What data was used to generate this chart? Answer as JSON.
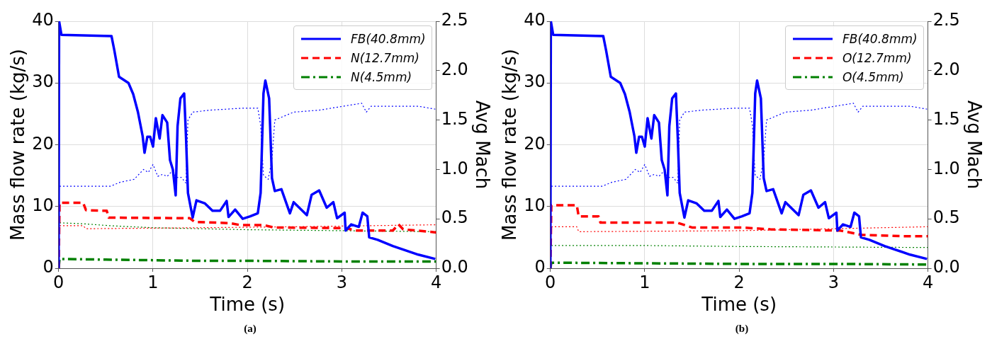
{
  "chart_data": [
    {
      "type": "line",
      "xlabel": "Time (s)",
      "ylabel": "Mass flow rate (kg/s)",
      "y2label": "Avg Mach",
      "annotations": [
        "(a)"
      ],
      "xlim": [
        0,
        4
      ],
      "xticks": [
        0,
        1,
        2,
        3,
        4
      ],
      "ylim": [
        0,
        40
      ],
      "yticks": [
        0,
        10,
        20,
        30,
        40
      ],
      "y2lim": [
        0,
        2.5
      ],
      "y2ticks": [
        {
          "value": 0,
          "label": "0.0"
        },
        {
          "value": 0.5,
          "label": "0.5"
        },
        {
          "value": 1,
          "label": "1.0"
        },
        {
          "value": 1.5,
          "label": "1.5"
        },
        {
          "value": 2,
          "label": "2.0"
        },
        {
          "value": 2.5,
          "label": "2.5"
        }
      ],
      "grid": true,
      "legend": "top right",
      "series": [
        {
          "name": "FB(40.8mm)",
          "color": "#0000ff",
          "line_style": "solid",
          "x": [
            0,
            0.005,
            0.03,
            0.56,
            0.59,
            0.64,
            0.74,
            0.79,
            0.84,
            0.89,
            0.91,
            0.94,
            0.97,
            1.0,
            1.03,
            1.07,
            1.1,
            1.15,
            1.18,
            1.21,
            1.24,
            1.26,
            1.29,
            1.33,
            1.35,
            1.37,
            1.42,
            1.46,
            1.55,
            1.63,
            1.71,
            1.78,
            1.8,
            1.87,
            1.95,
            2.03,
            2.11,
            2.14,
            2.17,
            2.19,
            2.23,
            2.26,
            2.29,
            2.36,
            2.45,
            2.49,
            2.63,
            2.68,
            2.76,
            2.84,
            2.91,
            2.95,
            3.03,
            3.04,
            3.1,
            3.18,
            3.22,
            3.27,
            3.29,
            3.38,
            3.54,
            3.81,
            3.99
          ],
          "values": [
            0,
            40,
            37.8,
            37.6,
            35.3,
            31,
            30,
            28.2,
            25.3,
            21.4,
            18.7,
            21.3,
            21.3,
            19.7,
            24.3,
            21,
            24.8,
            23.6,
            17.5,
            16,
            11.8,
            23,
            27.5,
            28.3,
            21,
            12.2,
            8.2,
            11,
            10.5,
            9.3,
            9.3,
            10.9,
            8.3,
            9.5,
            8,
            8.4,
            8.9,
            12.2,
            28.3,
            30.4,
            27.5,
            14.6,
            12.5,
            12.8,
            8.9,
            10.7,
            8.6,
            11.9,
            12.6,
            9.8,
            10.7,
            8.1,
            9,
            6.1,
            7.1,
            6.7,
            9,
            8.4,
            5,
            4.6,
            3.6,
            2.2,
            1.5
          ]
        },
        {
          "name": "N(12.7mm)",
          "color": "#ff0000",
          "line_style": "dashed",
          "x": [
            0,
            0.01,
            0.26,
            0.29,
            0.51,
            0.53,
            1.39,
            1.44,
            1.82,
            1.92,
            2.17,
            2.28,
            3.03,
            3.16,
            3.54,
            3.6,
            3.65,
            4.0
          ],
          "values": [
            0,
            10.6,
            10.6,
            9.4,
            9.3,
            8.2,
            8.1,
            7.5,
            7.3,
            7,
            7,
            6.6,
            6.5,
            6.1,
            6.1,
            7.1,
            6.3,
            5.8
          ]
        },
        {
          "name": "N(4.5mm)",
          "color": "#008000",
          "line_style": "dashdot",
          "x": [
            0,
            0.01,
            0.5,
            1,
            1.5,
            2,
            3,
            4
          ],
          "values": [
            0,
            1.5,
            1.4,
            1.3,
            1.2,
            1.2,
            1.1,
            1.1
          ]
        },
        {
          "color": "#0000ff",
          "line_style": "dotted",
          "axis": "y2",
          "x": [
            0.01,
            0.55,
            0.65,
            0.8,
            0.9,
            0.95,
            1.0,
            1.05,
            1.1,
            1.15,
            1.2,
            1.25,
            1.3,
            1.35,
            1.37,
            1.42,
            1.6,
            1.95,
            2.11,
            2.14,
            2.17,
            2.22,
            2.26,
            2.29,
            2.49,
            2.76,
            3.21,
            3.26,
            3.31,
            3.81,
            3.99
          ],
          "values": [
            0.83,
            0.83,
            0.87,
            0.9,
            1.0,
            0.97,
            1.05,
            0.93,
            0.95,
            0.93,
            0.98,
            0.92,
            0.92,
            0.86,
            1.5,
            1.58,
            1.6,
            1.62,
            1.62,
            1.45,
            0.94,
            0.9,
            1.1,
            1.5,
            1.58,
            1.6,
            1.67,
            1.58,
            1.64,
            1.64,
            1.61
          ]
        },
        {
          "color": "#ff0000",
          "line_style": "dotted",
          "axis": "y2",
          "x": [
            0.01,
            0.26,
            0.29,
            1.5,
            2.5,
            4.0
          ],
          "values": [
            0.43,
            0.43,
            0.4,
            0.41,
            0.42,
            0.44
          ]
        },
        {
          "color": "#008000",
          "line_style": "dotted",
          "axis": "y2",
          "x": [
            0.01,
            0.26,
            0.55,
            1.0,
            1.5,
            2.0,
            4.0
          ],
          "values": [
            0.46,
            0.45,
            0.43,
            0.41,
            0.4,
            0.39,
            0.37
          ]
        }
      ]
    },
    {
      "type": "line",
      "xlabel": "Time (s)",
      "ylabel": "Mass flow rate (kg/s)",
      "y2label": "Avg Mach",
      "annotations": [
        "(b)"
      ],
      "xlim": [
        0,
        4
      ],
      "xticks": [
        0,
        1,
        2,
        3,
        4
      ],
      "ylim": [
        0,
        40
      ],
      "yticks": [
        0,
        10,
        20,
        30,
        40
      ],
      "y2lim": [
        0,
        2.5
      ],
      "y2ticks": [
        {
          "value": 0,
          "label": "0.0"
        },
        {
          "value": 0.5,
          "label": "0.5"
        },
        {
          "value": 1,
          "label": "1.0"
        },
        {
          "value": 1.5,
          "label": "1.5"
        },
        {
          "value": 2,
          "label": "2.0"
        },
        {
          "value": 2.5,
          "label": "2.5"
        }
      ],
      "grid": true,
      "legend": "top right",
      "series": [
        {
          "name": "FB(40.8mm)",
          "color": "#0000ff",
          "line_style": "solid",
          "x": [
            0,
            0.005,
            0.03,
            0.56,
            0.59,
            0.64,
            0.74,
            0.79,
            0.84,
            0.89,
            0.91,
            0.94,
            0.97,
            1.0,
            1.03,
            1.07,
            1.1,
            1.15,
            1.18,
            1.21,
            1.24,
            1.26,
            1.29,
            1.33,
            1.35,
            1.37,
            1.42,
            1.46,
            1.55,
            1.63,
            1.71,
            1.78,
            1.8,
            1.87,
            1.95,
            2.03,
            2.11,
            2.14,
            2.17,
            2.19,
            2.23,
            2.26,
            2.29,
            2.36,
            2.45,
            2.49,
            2.63,
            2.68,
            2.76,
            2.84,
            2.91,
            2.95,
            3.03,
            3.04,
            3.1,
            3.18,
            3.22,
            3.27,
            3.29,
            3.38,
            3.54,
            3.81,
            3.99
          ],
          "values": [
            0,
            40,
            37.8,
            37.6,
            35.3,
            31,
            30,
            28.2,
            25.3,
            21.4,
            18.7,
            21.3,
            21.3,
            19.7,
            24.3,
            21,
            24.8,
            23.6,
            17.5,
            16,
            11.8,
            23,
            27.5,
            28.3,
            21,
            12.2,
            8.2,
            11,
            10.5,
            9.3,
            9.3,
            10.9,
            8.3,
            9.5,
            8,
            8.4,
            8.9,
            12.2,
            28.3,
            30.4,
            27.5,
            14.6,
            12.5,
            12.8,
            8.9,
            10.7,
            8.6,
            11.9,
            12.6,
            9.8,
            10.7,
            8.1,
            9,
            6.1,
            7.1,
            6.7,
            9,
            8.4,
            5,
            4.6,
            3.6,
            2.2,
            1.5
          ]
        },
        {
          "name": "O(12.7mm)",
          "color": "#ff0000",
          "line_style": "dashed",
          "x": [
            0,
            0.01,
            0.28,
            0.3,
            0.51,
            0.53,
            1.34,
            1.5,
            2.03,
            2.33,
            3.07,
            3.3,
            3.73,
            4.0
          ],
          "values": [
            0,
            10.2,
            10.2,
            8.4,
            8.4,
            7.4,
            7.4,
            6.6,
            6.6,
            6.3,
            6.1,
            5.4,
            5.2,
            5.2
          ]
        },
        {
          "name": "O(4.5mm)",
          "color": "#008000",
          "line_style": "dashdot",
          "x": [
            0,
            0.01,
            1,
            2,
            3,
            4
          ],
          "values": [
            0,
            0.9,
            0.8,
            0.7,
            0.7,
            0.6
          ]
        },
        {
          "color": "#0000ff",
          "line_style": "dotted",
          "axis": "y2",
          "x": [
            0.01,
            0.55,
            0.65,
            0.8,
            0.9,
            0.95,
            1.0,
            1.05,
            1.1,
            1.15,
            1.2,
            1.25,
            1.3,
            1.35,
            1.37,
            1.42,
            1.6,
            1.95,
            2.11,
            2.14,
            2.17,
            2.22,
            2.26,
            2.29,
            2.49,
            2.76,
            3.21,
            3.26,
            3.31,
            3.81,
            3.99
          ],
          "values": [
            0.83,
            0.83,
            0.87,
            0.9,
            1.0,
            0.97,
            1.05,
            0.93,
            0.95,
            0.93,
            0.98,
            0.92,
            0.92,
            0.86,
            1.5,
            1.58,
            1.6,
            1.62,
            1.62,
            1.45,
            0.94,
            0.9,
            1.1,
            1.5,
            1.58,
            1.6,
            1.67,
            1.58,
            1.64,
            1.64,
            1.61
          ]
        },
        {
          "color": "#ff0000",
          "line_style": "dotted",
          "axis": "y2",
          "x": [
            0.01,
            0.28,
            0.3,
            2.0,
            4.0
          ],
          "values": [
            0.42,
            0.42,
            0.37,
            0.38,
            0.42
          ]
        },
        {
          "color": "#008000",
          "line_style": "dotted",
          "axis": "y2",
          "x": [
            0.01,
            1.0,
            2.0,
            4.0
          ],
          "values": [
            0.23,
            0.23,
            0.22,
            0.21
          ]
        }
      ]
    }
  ]
}
